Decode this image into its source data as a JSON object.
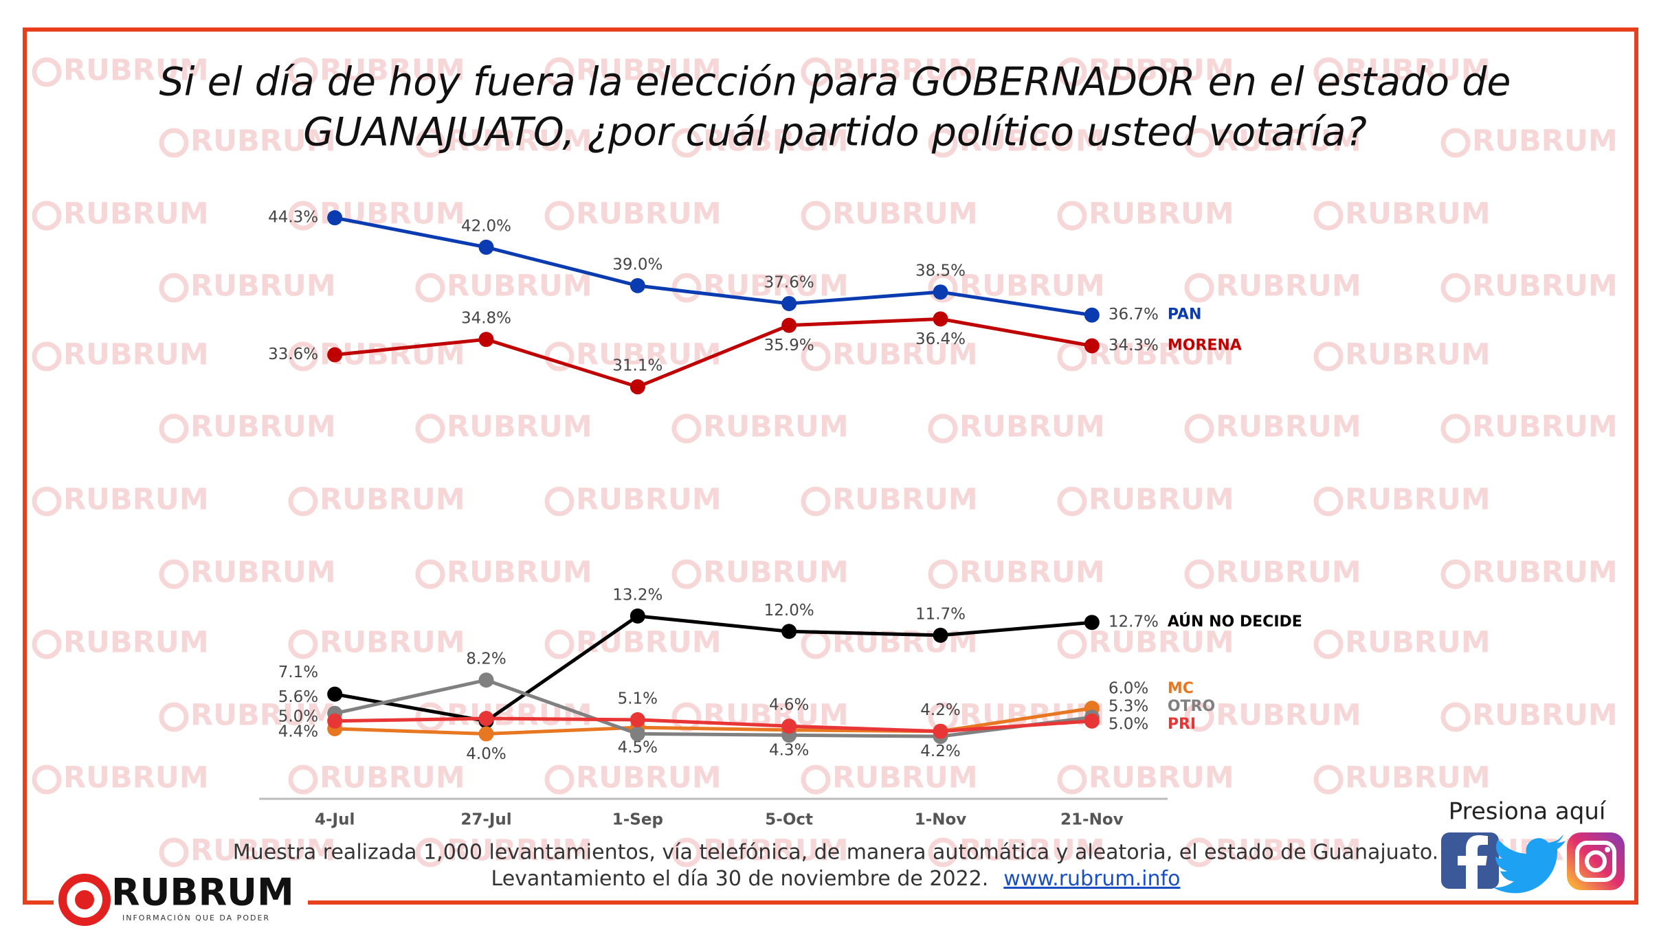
{
  "chart_data": {
    "type": "line",
    "title": [
      "Si el día de hoy fuera la elección para GOBERNADOR en el estado de",
      "GUANAJUATO, ¿por cuál partido político usted votaría?"
    ],
    "categories": [
      "4-Jul",
      "27-Jul",
      "1-Sep",
      "5-Oct",
      "1-Nov",
      "21-Nov"
    ],
    "ylim": [
      0,
      45
    ],
    "series": [
      {
        "name": "PAN",
        "color": "#0a3bb0",
        "values": [
          44.3,
          42.0,
          39.0,
          37.6,
          38.5,
          36.7
        ],
        "value_labels": [
          "44.3%",
          "42.0%",
          "39.0%",
          "37.6%",
          "38.5%",
          "36.7%"
        ]
      },
      {
        "name": "MORENA",
        "color": "#c00000",
        "values": [
          33.6,
          34.8,
          31.1,
          35.9,
          36.4,
          34.3
        ],
        "value_labels": [
          "33.6%",
          "34.8%",
          "31.1%",
          "35.9%",
          "36.4%",
          "34.3%"
        ]
      },
      {
        "name": "AÚN NO DECIDE",
        "color": "#000000",
        "values": [
          7.1,
          5.0,
          13.2,
          12.0,
          11.7,
          12.7
        ],
        "value_labels": [
          "7.1%",
          null,
          "13.2%",
          "12.0%",
          "11.7%",
          "12.7%"
        ]
      },
      {
        "name": "MC",
        "color": "#e87722",
        "values": [
          4.4,
          4.0,
          4.5,
          4.3,
          4.2,
          6.0
        ],
        "value_labels": [
          "4.4%",
          "4.0%",
          "4.5%",
          "4.3%",
          "4.2%",
          "6.0%"
        ]
      },
      {
        "name": "OTRO",
        "color": "#808080",
        "values": [
          5.6,
          8.2,
          4.0,
          3.9,
          3.8,
          5.3
        ],
        "value_labels": [
          "5.6%",
          "8.2%",
          null,
          null,
          null,
          "5.3%"
        ]
      },
      {
        "name": "PRI",
        "color": "#e83535",
        "values": [
          5.0,
          5.2,
          5.1,
          4.6,
          4.2,
          5.0
        ],
        "value_labels": [
          "5.0%",
          null,
          "5.1%",
          "4.6%",
          "4.2%",
          "5.0%"
        ]
      }
    ]
  },
  "footer": {
    "lines": [
      "Muestra realizada 1,000 levantamientos, vía telefónica, de manera automática y aleatoria, el estado de Guanajuato.",
      "Levantamiento el día 30 de noviembre de 2022."
    ],
    "link": "www.rubrum.info"
  },
  "social": {
    "prompt": "Presiona aquí"
  },
  "brand": {
    "name": "RUBRUM",
    "tagline": "INFORMACIÓN QUE DA PODER"
  },
  "watermark": "RUBRUM"
}
